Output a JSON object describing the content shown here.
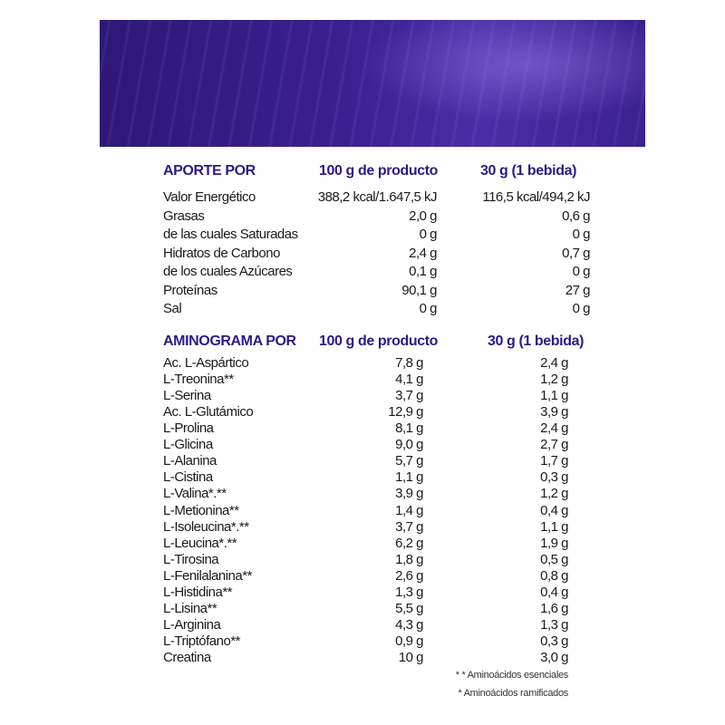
{
  "banner_colors": {
    "dark": "#2d1877",
    "light": "#8f78e0"
  },
  "header_color": "#2b1b86",
  "aporte": {
    "header": {
      "label": "APORTE POR",
      "col1": "100 g de producto",
      "col2": "30 g (1 bebida)"
    },
    "rows": [
      {
        "label": "Valor Energético",
        "v1": "388,2 kcal/1.647,5 kJ",
        "v2": "116,5 kcal/494,2 kJ"
      },
      {
        "label": "Grasas",
        "v1": "2,0 g",
        "v2": "0,6 g"
      },
      {
        "label": "de las cuales Saturadas",
        "v1": "0 g",
        "v2": "0 g"
      },
      {
        "label": "Hidratos de Carbono",
        "v1": "2,4 g",
        "v2": "0,7 g"
      },
      {
        "label": "de los cuales Azúcares",
        "v1": "0,1 g",
        "v2": "0 g"
      },
      {
        "label": "Proteínas",
        "v1": "90,1 g",
        "v2": "27 g"
      },
      {
        "label": "Sal",
        "v1": "0 g",
        "v2": "0 g"
      }
    ]
  },
  "aminograma": {
    "header": {
      "label": "AMINOGRAMA POR",
      "col1": "100 g de producto",
      "col2": "30 g (1 bebida)"
    },
    "rows": [
      {
        "label": "Ac. L-Aspártico",
        "v1": "7,8 g",
        "v2": "2,4 g"
      },
      {
        "label": "L-Treonina**",
        "v1": "4,1 g",
        "v2": "1,2 g"
      },
      {
        "label": "L-Serina",
        "v1": "3,7 g",
        "v2": "1,1 g"
      },
      {
        "label": "Ac. L-Glutámico",
        "v1": "12,9 g",
        "v2": "3,9 g"
      },
      {
        "label": "L-Prolina",
        "v1": "8,1 g",
        "v2": "2,4 g"
      },
      {
        "label": "L-Glicina",
        "v1": "9,0 g",
        "v2": "2,7 g"
      },
      {
        "label": "L-Alanina",
        "v1": "5,7 g",
        "v2": "1,7 g"
      },
      {
        "label": "L-Cistina",
        "v1": "1,1 g",
        "v2": "0,3 g"
      },
      {
        "label": "L-Valina*.**",
        "v1": "3,9 g",
        "v2": "1,2 g"
      },
      {
        "label": "L-Metionina**",
        "v1": "1,4 g",
        "v2": "0,4 g"
      },
      {
        "label": "L-Isoleucina*.**",
        "v1": "3,7 g",
        "v2": "1,1 g"
      },
      {
        "label": "L-Leucina*.**",
        "v1": "6,2 g",
        "v2": "1,9 g"
      },
      {
        "label": "L-Tirosina",
        "v1": "1,8 g",
        "v2": "0,5 g"
      },
      {
        "label": "L-Fenilalanina**",
        "v1": "2,6 g",
        "v2": "0,8 g"
      },
      {
        "label": "L-Histidina**",
        "v1": "1,3 g",
        "v2": "0,4 g"
      },
      {
        "label": "L-Lisina**",
        "v1": "5,5 g",
        "v2": "1,6 g"
      },
      {
        "label": "L-Arginina",
        "v1": "4,3 g",
        "v2": "1,3 g"
      },
      {
        "label": "L-Triptófano**",
        "v1": "0,9 g",
        "v2": "0,3 g"
      },
      {
        "label": "Creatina",
        "v1": "10 g",
        "v2": "3,0 g"
      }
    ]
  },
  "footnotes": [
    "* * Aminoácidos esenciales",
    "* Aminoácidos ramificados"
  ]
}
